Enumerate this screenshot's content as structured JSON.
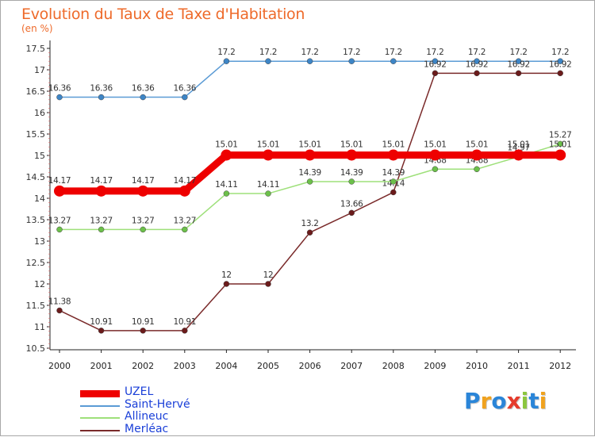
{
  "title": "Evolution du Taux de Taxe d'Habitation",
  "subtitle": "(en %)",
  "logo": {
    "text": "Proxiti",
    "letters": [
      {
        "ch": "P",
        "color": "#2a85d8"
      },
      {
        "ch": "r",
        "color": "#f0a21e"
      },
      {
        "ch": "o",
        "color": "#2a85d8"
      },
      {
        "ch": "x",
        "color": "#e53b2c"
      },
      {
        "ch": "i",
        "color": "#8cc63e"
      },
      {
        "ch": "t",
        "color": "#2a85d8"
      },
      {
        "ch": "i",
        "color": "#f0a21e"
      }
    ]
  },
  "chart_data": {
    "type": "line",
    "title": "Evolution du Taux de Taxe d'Habitation",
    "ylabel": "(en %)",
    "xlabel": "",
    "x": [
      "2000",
      "2001",
      "2002",
      "2003",
      "2004",
      "2005",
      "2006",
      "2007",
      "2008",
      "2009",
      "2010",
      "2011",
      "2012"
    ],
    "ylim": [
      10.5,
      17.5
    ],
    "yticks": [
      10.5,
      11,
      11.5,
      12,
      12.5,
      13,
      13.5,
      14,
      14.5,
      15,
      15.5,
      16,
      16.5,
      17,
      17.5
    ],
    "ytick_labels": [
      "10.5",
      "11",
      "11.5",
      "12",
      "12.5",
      "13",
      "13.5",
      "14",
      "14.5",
      "15",
      "15.5",
      "16",
      "16.5",
      "17",
      "17.5"
    ],
    "grid": false,
    "legend_position": "bottom-left",
    "series": [
      {
        "name": "Saint-Hervé",
        "color": "#5b9bd5",
        "marker": "#3d85c6",
        "width": "thin",
        "values": [
          16.36,
          16.36,
          16.36,
          16.36,
          17.2,
          17.2,
          17.2,
          17.2,
          17.2,
          17.2,
          17.2,
          17.2,
          17.2
        ],
        "labels": [
          "16.36",
          "16.36",
          "16.36",
          "16.36",
          "17.2",
          "17.2",
          "17.2",
          "17.2",
          "17.2",
          "17.2",
          "17.2",
          "17.2",
          "17.2"
        ]
      },
      {
        "name": "Merléac",
        "color": "#7a2a2a",
        "marker": "#6b1b1b",
        "width": "thin",
        "values": [
          11.38,
          10.91,
          10.91,
          10.91,
          12,
          12,
          13.2,
          13.66,
          14.14,
          16.92,
          16.92,
          16.92,
          16.92
        ],
        "labels": [
          "11.38",
          "10.91",
          "10.91",
          "10.91",
          "12",
          "12",
          "13.2",
          "13.66",
          "14.14",
          "16.92",
          "16.92",
          "16.92",
          "16.92"
        ]
      },
      {
        "name": "Allineuc",
        "color": "#9ee07a",
        "marker": "#6cc04a",
        "width": "thin",
        "values": [
          13.27,
          13.27,
          13.27,
          13.27,
          14.11,
          14.11,
          14.39,
          14.39,
          14.39,
          14.68,
          14.68,
          14.97,
          15.27
        ],
        "labels": [
          "13.27",
          "13.27",
          "13.27",
          "13.27",
          "14.11",
          "14.11",
          "14.39",
          "14.39",
          "14.39",
          "14.68",
          "14.68",
          "14.97",
          "15.27"
        ]
      },
      {
        "name": "UZEL",
        "color": "#ee0000",
        "marker": "#ee0000",
        "width": "thick",
        "values": [
          14.17,
          14.17,
          14.17,
          14.17,
          15.01,
          15.01,
          15.01,
          15.01,
          15.01,
          15.01,
          15.01,
          15.01,
          15.01
        ],
        "labels": [
          "14.17",
          "14.17",
          "14.17",
          "14.17",
          "15.01",
          "15.01",
          "15.01",
          "15.01",
          "15.01",
          "15.01",
          "15.01",
          "15.01",
          "15.01"
        ]
      }
    ],
    "legend": [
      {
        "name": "UZEL",
        "color": "#ee0000",
        "width": "thick"
      },
      {
        "name": "Saint-Hervé",
        "color": "#5b9bd5",
        "width": "thin"
      },
      {
        "name": "Allineuc",
        "color": "#9ee07a",
        "width": "thin"
      },
      {
        "name": "Merléac",
        "color": "#7a2a2a",
        "width": "thin"
      }
    ]
  }
}
